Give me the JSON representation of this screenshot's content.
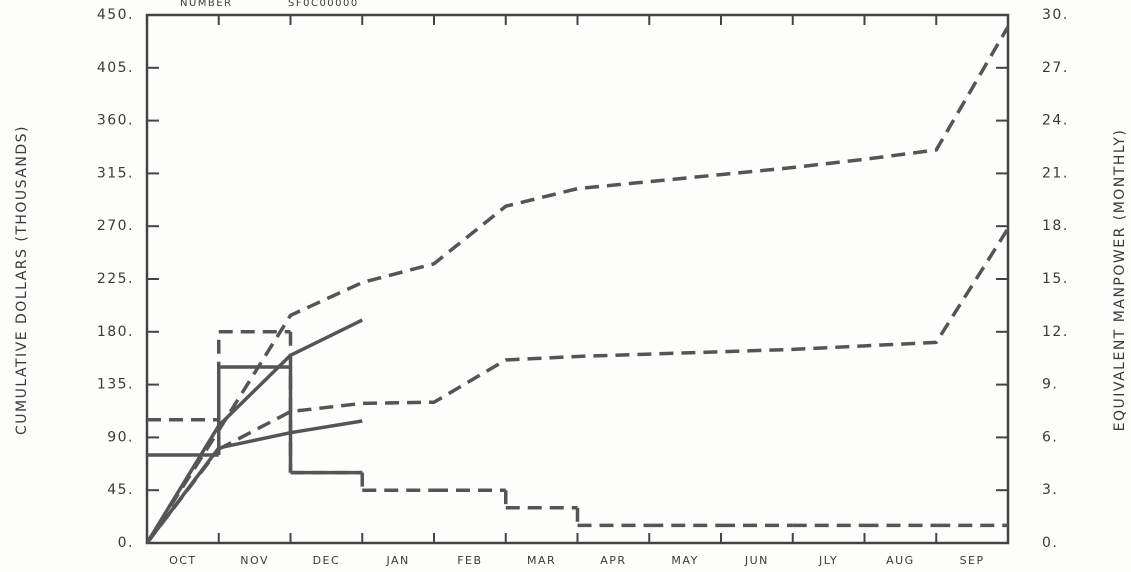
{
  "chart_data": {
    "type": "line",
    "annotations": [
      "NUMBER",
      "SF0C00000"
    ],
    "y_label": "CUMULATIVE DOLLARS (THOUSANDS)",
    "y2_label": "EQUIVALENT MANPOWER (MONTHLY)",
    "categories": [
      "OCT",
      "NOV",
      "DEC",
      "JAN",
      "FEB",
      "MAR",
      "APR",
      "MAY",
      "JUN",
      "JLY",
      "AUG",
      "SEP"
    ],
    "ylim": [
      0,
      450
    ],
    "yticks": [
      {
        "value": 0,
        "label": "0."
      },
      {
        "value": 45,
        "label": "45."
      },
      {
        "value": 90,
        "label": "90."
      },
      {
        "value": 135,
        "label": "135."
      },
      {
        "value": 180,
        "label": "180."
      },
      {
        "value": 225,
        "label": "225."
      },
      {
        "value": 270,
        "label": "270."
      },
      {
        "value": 315,
        "label": "315."
      },
      {
        "value": 360,
        "label": "360."
      },
      {
        "value": 405,
        "label": "405."
      },
      {
        "value": 450,
        "label": "450."
      }
    ],
    "y2lim": [
      0,
      30
    ],
    "y2ticks": [
      {
        "value": 0,
        "label": "0."
      },
      {
        "value": 3,
        "label": "3."
      },
      {
        "value": 6,
        "label": "6."
      },
      {
        "value": 9,
        "label": "9."
      },
      {
        "value": 12,
        "label": "12."
      },
      {
        "value": 15,
        "label": "15."
      },
      {
        "value": 18,
        "label": "18."
      },
      {
        "value": 21,
        "label": "21."
      },
      {
        "value": 24,
        "label": "24."
      },
      {
        "value": 27,
        "label": "27."
      },
      {
        "value": 30,
        "label": "30."
      }
    ],
    "color": "#555555",
    "series": [
      {
        "style": "dashed",
        "values": [
          96,
          194,
          222,
          238,
          287,
          302,
          308,
          314,
          320,
          327,
          335,
          440
        ]
      },
      {
        "style": "dashed",
        "values": [
          80,
          112,
          119,
          120,
          156,
          159,
          161,
          163,
          165,
          168,
          171,
          268
        ]
      },
      {
        "style": "solid",
        "values": [
          100,
          160,
          190,
          null,
          null,
          null,
          null,
          null,
          null,
          null,
          null,
          null
        ]
      },
      {
        "style": "solid",
        "values": [
          81,
          94,
          104,
          null,
          null,
          null,
          null,
          null,
          null,
          null,
          null,
          null
        ]
      },
      {
        "style": "dashed",
        "step": true,
        "axis": "y2",
        "values": [
          7,
          12,
          4,
          3,
          3,
          2,
          1,
          1,
          1,
          1,
          1,
          1
        ]
      },
      {
        "style": "solid",
        "step": true,
        "axis": "y2",
        "values": [
          5,
          10,
          4,
          null,
          null,
          null,
          null,
          null,
          null,
          null,
          null,
          null
        ]
      }
    ]
  }
}
